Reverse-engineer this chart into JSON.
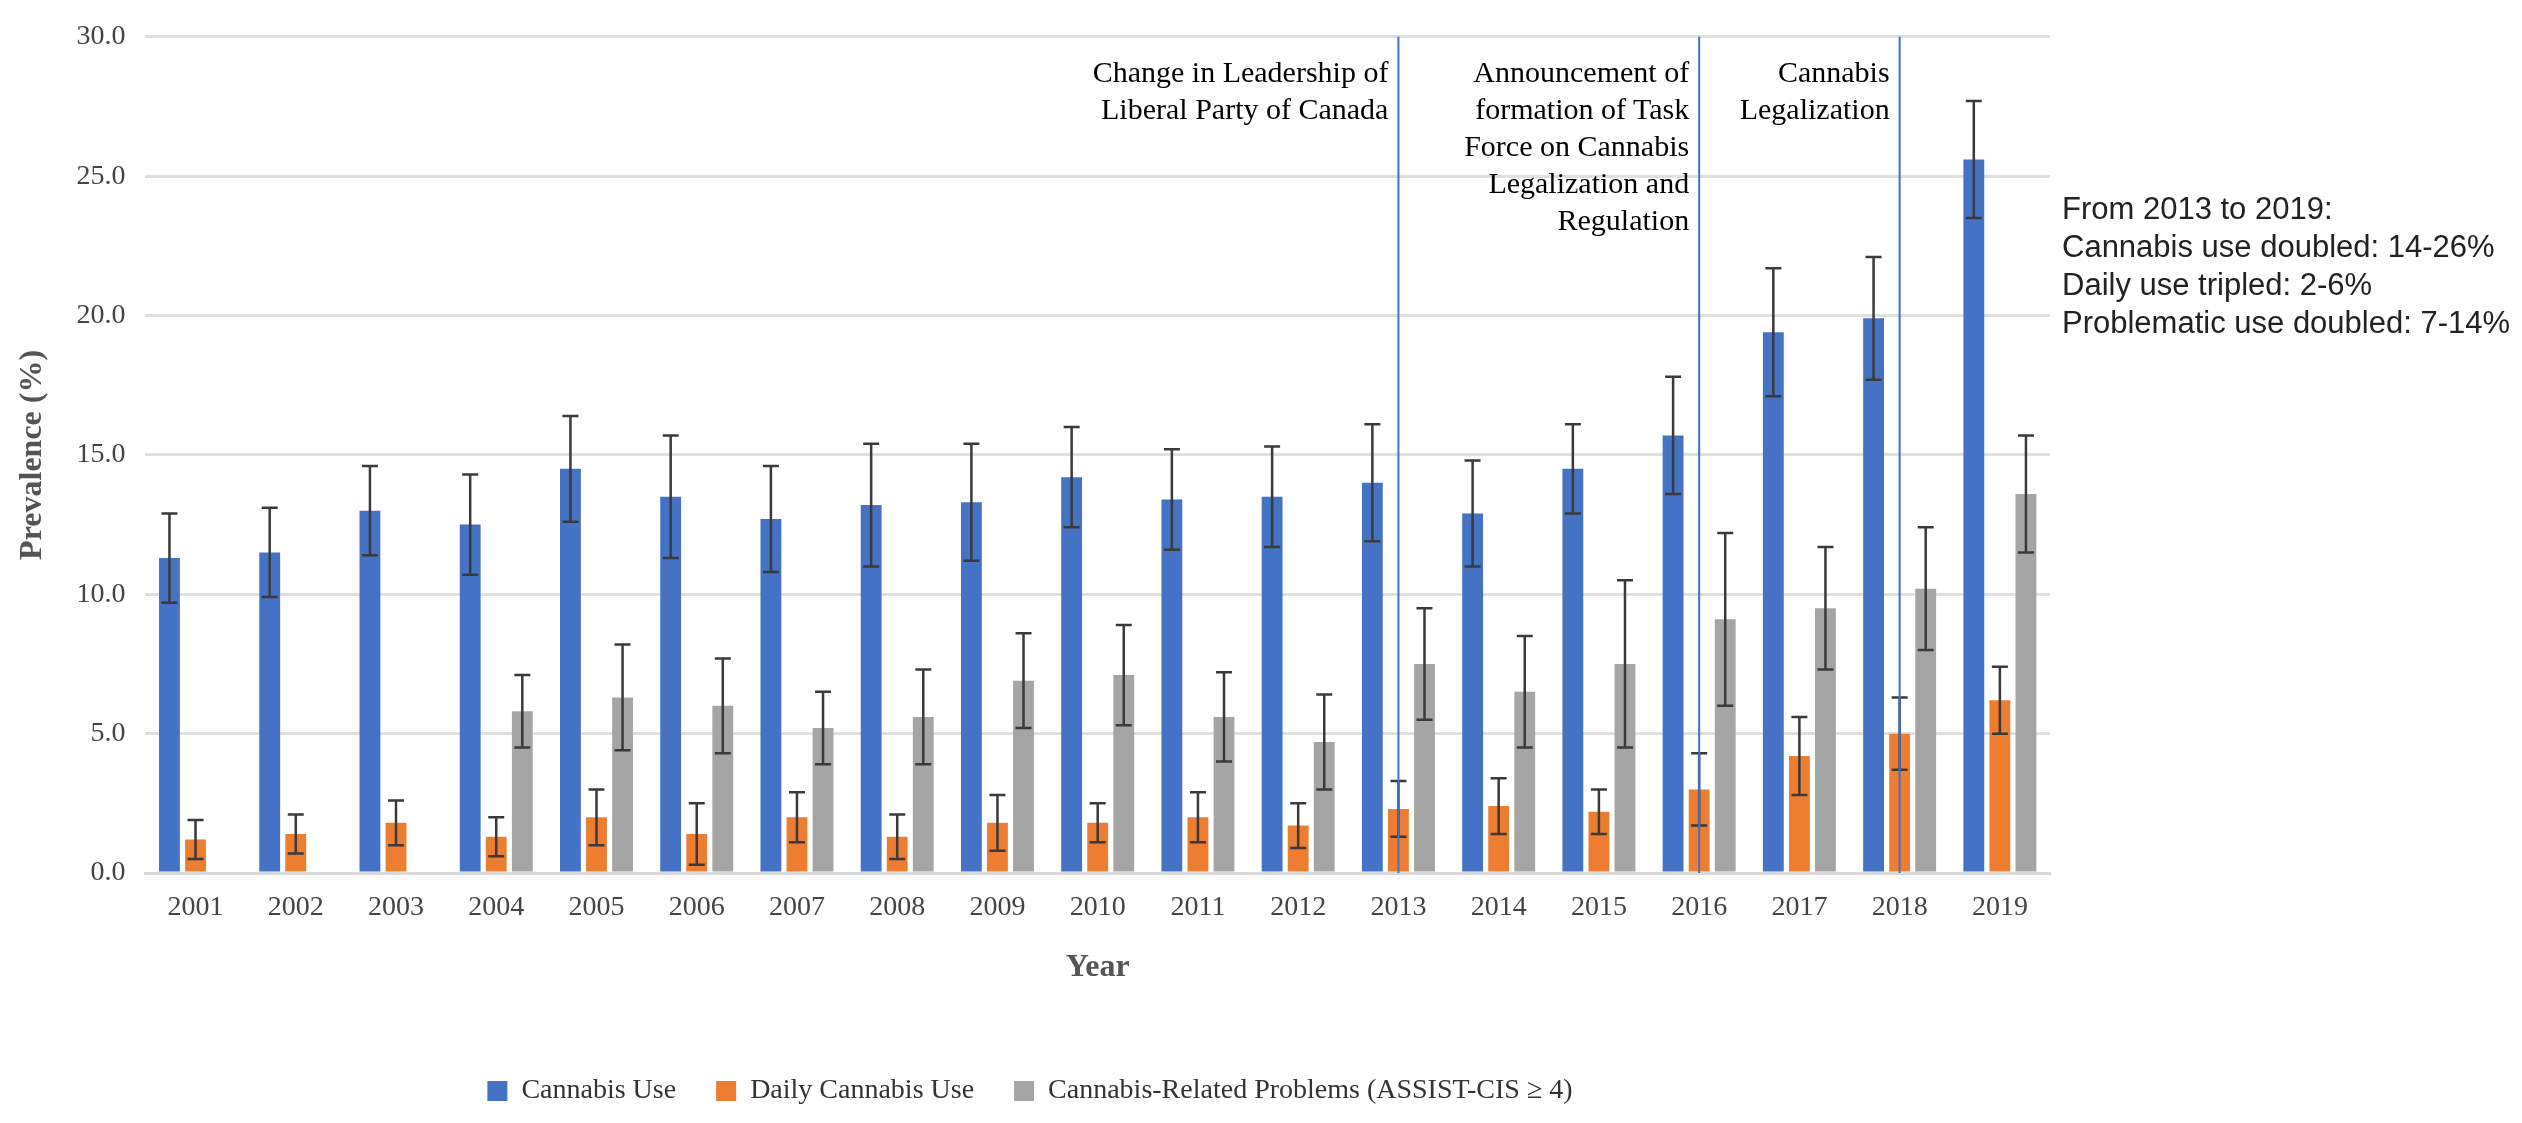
{
  "chart_data": {
    "type": "bar",
    "xlabel": "Year",
    "ylabel": "Prevalence (%)",
    "categories": [
      "2001",
      "2002",
      "2003",
      "2004",
      "2005",
      "2006",
      "2007",
      "2008",
      "2009",
      "2010",
      "2011",
      "2012",
      "2013",
      "2014",
      "2015",
      "2016",
      "2017",
      "2018",
      "2019"
    ],
    "series": [
      {
        "name": "Cannabis Use",
        "color": "#4472c4",
        "values": [
          11.3,
          11.5,
          13.0,
          12.5,
          14.5,
          13.5,
          12.7,
          13.2,
          13.3,
          14.2,
          13.4,
          13.5,
          14.0,
          12.9,
          14.5,
          15.7,
          19.4,
          19.9,
          25.6
        ],
        "errors": [
          1.6,
          1.6,
          1.6,
          1.8,
          1.9,
          2.2,
          1.9,
          2.2,
          2.1,
          1.8,
          1.8,
          1.8,
          2.1,
          1.9,
          1.6,
          2.1,
          2.3,
          2.2,
          2.1
        ]
      },
      {
        "name": "Daily Cannabis Use",
        "color": "#ed7d31",
        "values": [
          1.2,
          1.4,
          1.8,
          1.3,
          2.0,
          1.4,
          2.0,
          1.3,
          1.8,
          1.8,
          2.0,
          1.7,
          2.3,
          2.4,
          2.2,
          3.0,
          4.2,
          5.0,
          6.2
        ],
        "errors": [
          0.7,
          0.7,
          0.8,
          0.7,
          1.0,
          1.1,
          0.9,
          0.8,
          1.0,
          0.7,
          0.9,
          0.8,
          1.0,
          1.0,
          0.8,
          1.3,
          1.4,
          1.3,
          1.2
        ]
      },
      {
        "name": "Cannabis-Related Problems (ASSIST-CIS ≥ 4)",
        "color": "#a5a5a5",
        "values": [
          null,
          null,
          null,
          5.8,
          6.3,
          6.0,
          5.2,
          5.6,
          6.9,
          7.1,
          5.6,
          4.7,
          7.5,
          6.5,
          7.5,
          9.1,
          9.5,
          10.2,
          13.6
        ],
        "errors": [
          null,
          null,
          null,
          1.3,
          1.9,
          1.7,
          1.3,
          1.7,
          1.7,
          1.8,
          1.6,
          1.7,
          2.0,
          2.0,
          3.0,
          3.1,
          2.2,
          2.2,
          2.1
        ]
      }
    ],
    "ylim": [
      0,
      30
    ],
    "yticks": [
      {
        "value": 0,
        "label": "0.0"
      },
      {
        "value": 5,
        "label": "5.0"
      },
      {
        "value": 10,
        "label": "10.0"
      },
      {
        "value": 15,
        "label": "15.0"
      },
      {
        "value": 20,
        "label": "20.0"
      },
      {
        "value": 25,
        "label": "25.0"
      },
      {
        "value": 30,
        "label": "30.0"
      }
    ],
    "grid": "y",
    "legend": "bottom",
    "ref_lines": [
      {
        "axis": "x",
        "value": "2013",
        "label": "Change in Leadership of Liberal Party of Canada",
        "color": "#4472c4"
      },
      {
        "axis": "x",
        "value": "2016",
        "label": "Announcement of formation of Task Force on Cannabis Legalization and Regulation",
        "color": "#4472c4"
      },
      {
        "axis": "x",
        "value": "2018",
        "label": "Cannabis Legalization",
        "color": "#4472c4"
      }
    ],
    "annotations": [
      "From 2013 to 2019:\nCannabis use doubled: 14-26%\nDaily use tripled: 2-6%\nProblematic use doubled: 7-14%"
    ]
  }
}
